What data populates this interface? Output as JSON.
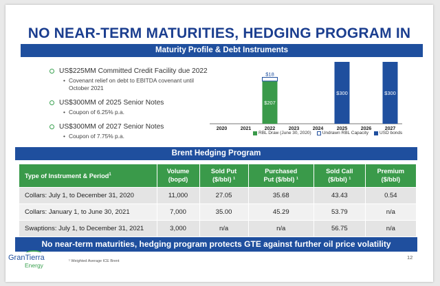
{
  "title": "NO NEAR-TERM MATURITIES, HEDGING PROGRAM IN PLACE",
  "maturity_header": "Maturity Profile & Debt Instruments",
  "bullets": [
    {
      "main": "US$225MM Committed Credit Facility due 2022",
      "subs": [
        "Covenant relief on debt to EBITDA covenant until October 2021"
      ]
    },
    {
      "main": "US$300MM of 2025 Senior Notes",
      "subs": [
        "Coupon of 6.25% p.a."
      ]
    },
    {
      "main": "US$300MM of 2027 Senior Notes",
      "subs": [
        "Coupon of 7.75% p.a."
      ]
    }
  ],
  "chart_data": {
    "type": "bar",
    "categories": [
      "2020",
      "2021",
      "2022",
      "2023",
      "2024",
      "2025",
      "2026",
      "2027"
    ],
    "series": [
      {
        "name": "RBL Draw (June 30, 2020)",
        "color": "#3a9a4a",
        "values": [
          0,
          0,
          207,
          0,
          0,
          0,
          0,
          0
        ]
      },
      {
        "name": "Undrawn RBL Capacity",
        "color": "#ffffff",
        "values": [
          0,
          0,
          18,
          0,
          0,
          0,
          0,
          0
        ]
      },
      {
        "name": "USD bonds",
        "color": "#1f4f9e",
        "values": [
          0,
          0,
          0,
          0,
          0,
          300,
          0,
          300
        ]
      }
    ],
    "data_labels": [
      "$207",
      "$18",
      "$300",
      "$300"
    ],
    "stacked": true,
    "ylim": [
      0,
      300
    ],
    "legend_position": "bottom",
    "grid": false
  },
  "hedge_header": "Brent Hedging Program",
  "table": {
    "headers": [
      [
        "Type of Instrument & Period",
        "1"
      ],
      [
        "Volume",
        "(bopd)"
      ],
      [
        "Sold Put",
        "($/bbl) ¹"
      ],
      [
        "Purchased",
        "Put ($/bbl) ¹"
      ],
      [
        "Sold Call",
        "($/bbl) ¹"
      ],
      [
        "Premium",
        "($/bbl)"
      ]
    ],
    "rows": [
      [
        "Collars: July 1, to December 31, 2020",
        "11,000",
        "27.05",
        "35.68",
        "43.43",
        "0.54"
      ],
      [
        "Collars: January 1, to June 30, 2021",
        "7,000",
        "35.00",
        "45.29",
        "53.79",
        "n/a"
      ],
      [
        "Swaptions: July 1, to December 31, 2021",
        "3,000",
        "n/a",
        "n/a",
        "56.75",
        "n/a"
      ]
    ]
  },
  "footer_banner": "No near-term maturities, hedging program protects GTE against further oil price volatility",
  "footnote": "¹  Weighted Average ICE Brent",
  "logo": {
    "line1": "GranTierra",
    "line2": "Energy"
  },
  "page_number": "12"
}
